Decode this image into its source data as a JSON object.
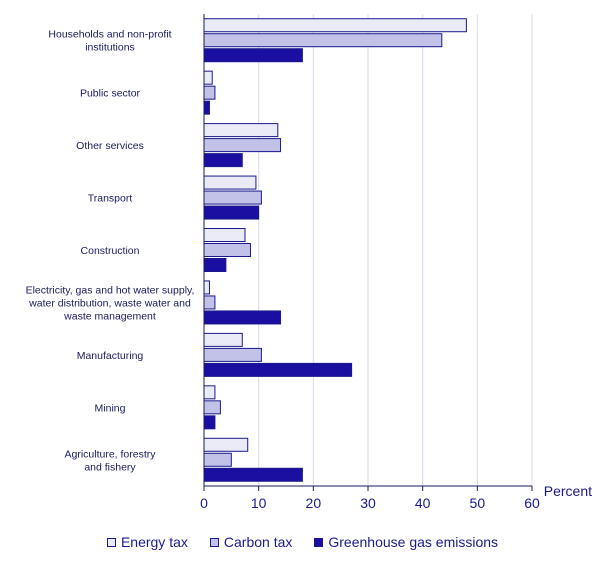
{
  "chart_data": {
    "type": "bar",
    "orientation": "horizontal",
    "categories": [
      [
        "Households and non-profit",
        "institutions"
      ],
      [
        "Public sector"
      ],
      [
        "Other services"
      ],
      [
        "Transport"
      ],
      [
        "Construction"
      ],
      [
        "Electricity, gas and hot water supply,",
        "water distribution, waste water and",
        "waste management"
      ],
      [
        "Manufacturing"
      ],
      [
        "Mining"
      ],
      [
        "Agriculture, forestry",
        "and fishery"
      ]
    ],
    "series": [
      {
        "name": "Energy tax",
        "color": "#ebebf7",
        "values": [
          48,
          1.5,
          13.5,
          9.5,
          7.5,
          1,
          7,
          2,
          8
        ]
      },
      {
        "name": "Carbon tax",
        "color": "#c2c2e8",
        "values": [
          43.5,
          2,
          14,
          10.5,
          8.5,
          2,
          10.5,
          3,
          5
        ]
      },
      {
        "name": "Greenhouse gas emissions",
        "color": "#1a0fa0",
        "values": [
          18,
          1,
          7,
          10,
          4,
          14,
          27,
          2,
          18
        ]
      }
    ],
    "xlim": [
      0,
      60
    ],
    "xticks": [
      "0",
      "10",
      "20",
      "30",
      "40",
      "50",
      "60"
    ],
    "xunit": "Percent",
    "grid": true,
    "legend_position": "bottom"
  }
}
